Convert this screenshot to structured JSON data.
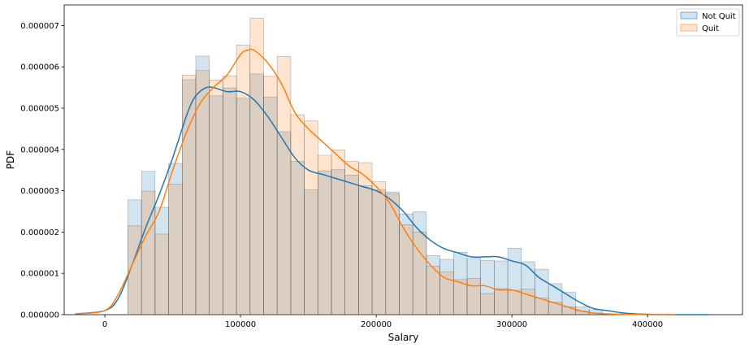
{
  "chart_data": {
    "type": "histogram_kde",
    "xlabel": "Salary",
    "ylabel": "PDF",
    "xlim": [
      -30000,
      470000
    ],
    "ylim": [
      0,
      7.5e-06
    ],
    "x_ticks": [
      0,
      100000,
      200000,
      300000,
      400000
    ],
    "y_ticks": [
      0,
      1e-06,
      2e-06,
      3e-06,
      4e-06,
      5e-06,
      6e-06,
      7e-06
    ],
    "x_tick_labels": [
      "0",
      "100000",
      "200000",
      "300000",
      "400000"
    ],
    "y_tick_labels": [
      "0.000000",
      "0.000001",
      "0.000002",
      "0.000003",
      "0.000004",
      "0.000005",
      "0.000006",
      "0.000007"
    ],
    "bin_start": 17000,
    "bin_width": 10000,
    "legend": {
      "placement": "top-right"
    },
    "series": [
      {
        "name": "Not Quit",
        "color": "#1f77b4",
        "hist_values": [
          2.78e-06,
          3.47e-06,
          2.6e-06,
          3.66e-06,
          5.69e-06,
          6.26e-06,
          5.3e-06,
          5.49e-06,
          5.24e-06,
          5.83e-06,
          5.27e-06,
          4.43e-06,
          3.71e-06,
          3.02e-06,
          3.48e-06,
          3.51e-06,
          3.38e-06,
          3.12e-06,
          3.02e-06,
          2.97e-06,
          2.44e-06,
          2.49e-06,
          1.43e-06,
          1.34e-06,
          1.51e-06,
          1.36e-06,
          1.31e-06,
          1.3e-06,
          1.61e-06,
          1.28e-06,
          1.1e-06,
          7.5e-07,
          5.4e-07,
          1.9e-07,
          1.2e-07
        ],
        "kde_x": [
          -22000,
          0,
          10000,
          20000,
          30000,
          40000,
          50000,
          60000,
          65000,
          70000,
          75000,
          80000,
          90000,
          100000,
          110000,
          120000,
          130000,
          140000,
          150000,
          160000,
          170000,
          180000,
          190000,
          200000,
          210000,
          220000,
          230000,
          240000,
          250000,
          260000,
          270000,
          280000,
          290000,
          300000,
          310000,
          320000,
          330000,
          340000,
          350000,
          360000,
          370000,
          380000,
          390000,
          400000,
          420000,
          445000
        ],
        "kde_y": [
          2e-08,
          1e-07,
          4e-07,
          1.2e-06,
          2.1e-06,
          2.9e-06,
          3.8e-06,
          4.8e-06,
          5.2e-06,
          5.4e-06,
          5.5e-06,
          5.5e-06,
          5.4e-06,
          5.4e-06,
          5.2e-06,
          4.8e-06,
          4.3e-06,
          3.8e-06,
          3.5e-06,
          3.4e-06,
          3.3e-06,
          3.2e-06,
          3.1e-06,
          3e-06,
          2.8e-06,
          2.5e-06,
          2.1e-06,
          1.8e-06,
          1.6e-06,
          1.5e-06,
          1.4e-06,
          1.4e-06,
          1.4e-06,
          1.3e-06,
          1.2e-06,
          9e-07,
          7e-07,
          5e-07,
          3e-07,
          1.5e-07,
          1e-07,
          5e-08,
          2e-08,
          1e-08,
          0,
          0
        ]
      },
      {
        "name": "Quit",
        "color": "#ff7f0e",
        "hist_values": [
          2.15e-06,
          2.99e-06,
          1.95e-06,
          3.16e-06,
          5.8e-06,
          5.91e-06,
          5.68e-06,
          5.78e-06,
          6.53e-06,
          7.18e-06,
          5.77e-06,
          6.25e-06,
          4.84e-06,
          4.69e-06,
          3.86e-06,
          3.99e-06,
          3.71e-06,
          3.68e-06,
          3.22e-06,
          2.92e-06,
          2.18e-06,
          2e-06,
          1.17e-06,
          1.04e-06,
          8.5e-07,
          8.8e-07,
          5.1e-07,
          6.3e-07,
          5.9e-07,
          6.2e-07,
          4e-07,
          3e-07,
          1.9e-07,
          9e-08,
          4e-08
        ],
        "kde_x": [
          -22000,
          0,
          10000,
          20000,
          30000,
          40000,
          50000,
          60000,
          70000,
          80000,
          90000,
          100000,
          105000,
          110000,
          120000,
          130000,
          140000,
          150000,
          160000,
          170000,
          180000,
          190000,
          200000,
          210000,
          220000,
          230000,
          240000,
          250000,
          260000,
          270000,
          280000,
          290000,
          300000,
          310000,
          320000,
          330000,
          340000,
          350000,
          360000,
          370000,
          380000,
          400000,
          420000
        ],
        "kde_y": [
          2e-08,
          1e-07,
          5e-07,
          1.2e-06,
          1.9e-06,
          2.5e-06,
          3.5e-06,
          4.4e-06,
          5.1e-06,
          5.5e-06,
          5.8e-06,
          6.3e-06,
          6.4e-06,
          6.4e-06,
          6.1e-06,
          5.6e-06,
          4.9e-06,
          4.5e-06,
          4.2e-06,
          3.9e-06,
          3.6e-06,
          3.4e-06,
          3.1e-06,
          2.7e-06,
          2.1e-06,
          1.6e-06,
          1.2e-06,
          9e-07,
          8e-07,
          7e-07,
          7e-07,
          6e-07,
          6e-07,
          5e-07,
          4e-07,
          3e-07,
          2e-07,
          1e-07,
          4e-08,
          2e-08,
          1e-08,
          0,
          0
        ]
      }
    ]
  }
}
